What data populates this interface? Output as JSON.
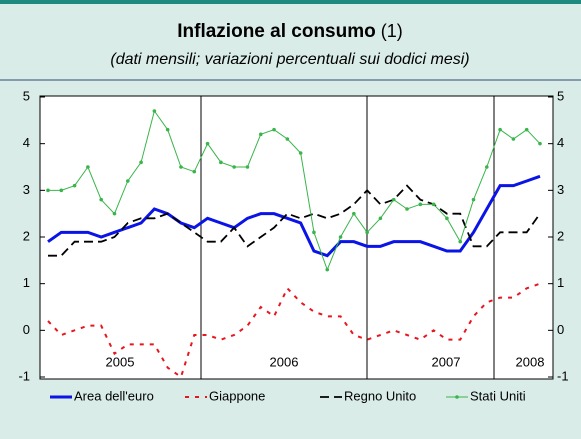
{
  "chart_data": {
    "type": "line",
    "title": "Inflazione al consumo",
    "title_note": "(1)",
    "subtitle": "(dati mensili; variazioni percentuali sui dodici mesi)",
    "x_labels": [
      "2005",
      "2006",
      "2007",
      "2008"
    ],
    "ylim": [
      -1,
      5
    ],
    "yticks": [
      -1,
      0,
      1,
      2,
      3,
      4,
      5
    ],
    "series": [
      {
        "name": "Area dell'euro",
        "color": "#0a14e6",
        "style": "solid",
        "values": [
          1.9,
          2.1,
          2.1,
          2.1,
          2.0,
          2.1,
          2.2,
          2.3,
          2.6,
          2.5,
          2.3,
          2.2,
          2.4,
          2.3,
          2.2,
          2.4,
          2.5,
          2.5,
          2.4,
          2.3,
          1.7,
          1.6,
          1.9,
          1.9,
          1.8,
          1.8,
          1.9,
          1.9,
          1.9,
          1.8,
          1.7,
          1.7,
          2.1,
          2.6,
          3.1,
          3.1,
          3.2,
          3.3
        ]
      },
      {
        "name": "Giappone",
        "color": "#e8161e",
        "style": "dotted",
        "values": [
          0.2,
          -0.1,
          0.0,
          0.1,
          0.1,
          -0.5,
          -0.3,
          -0.3,
          -0.3,
          -0.8,
          -1.0,
          -0.1,
          -0.1,
          -0.2,
          -0.1,
          0.1,
          0.5,
          0.3,
          0.9,
          0.6,
          0.4,
          0.3,
          0.3,
          -0.1,
          -0.2,
          -0.1,
          0.0,
          -0.1,
          -0.2,
          0.0,
          -0.2,
          -0.2,
          0.3,
          0.6,
          0.7,
          0.7,
          0.9,
          1.0
        ]
      },
      {
        "name": "Regno Unito",
        "color": "#000000",
        "style": "dashed",
        "values": [
          1.6,
          1.6,
          1.9,
          1.9,
          1.9,
          2.0,
          2.3,
          2.4,
          2.4,
          2.5,
          2.3,
          2.1,
          1.9,
          1.9,
          2.2,
          1.8,
          2.0,
          2.2,
          2.5,
          2.4,
          2.5,
          2.4,
          2.5,
          2.7,
          3.0,
          2.7,
          2.8,
          3.1,
          2.8,
          2.7,
          2.5,
          2.5,
          1.8,
          1.8,
          2.1,
          2.1,
          2.1,
          2.5
        ]
      },
      {
        "name": "Stati Uniti",
        "color": "#39b54a",
        "style": "markers",
        "values": [
          3.0,
          3.0,
          3.1,
          3.5,
          2.8,
          2.5,
          3.2,
          3.6,
          4.7,
          4.3,
          3.5,
          3.4,
          4.0,
          3.6,
          3.5,
          3.5,
          4.2,
          4.3,
          4.1,
          3.8,
          2.1,
          1.3,
          2.0,
          2.5,
          2.1,
          2.4,
          2.8,
          2.6,
          2.7,
          2.7,
          2.4,
          1.9,
          2.8,
          3.5,
          4.3,
          4.1,
          4.3,
          4.0
        ]
      }
    ]
  }
}
